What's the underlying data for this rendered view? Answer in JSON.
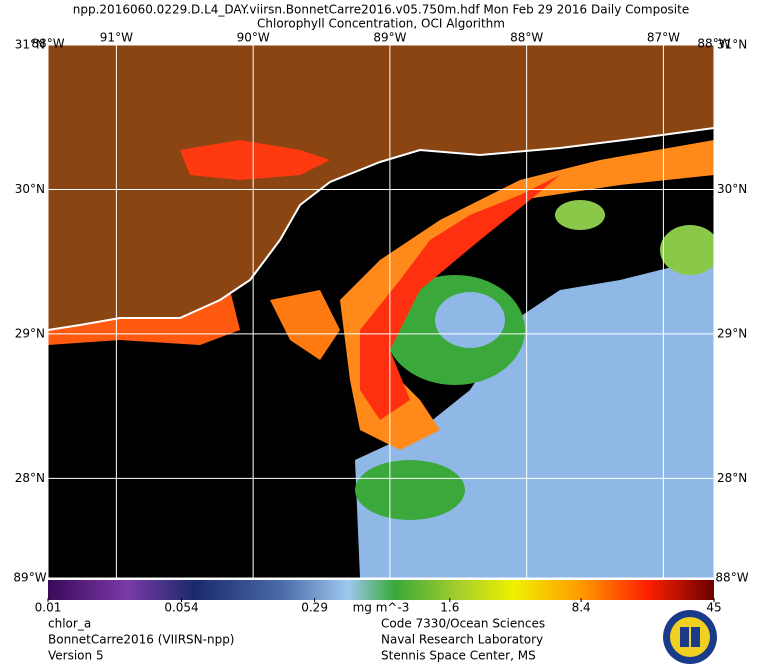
{
  "header": {
    "title": "npp.2016060.0229.D.L4_DAY.viirsn.BonnetCarre2016.v05.750m.hdf    Mon Feb 29 2016 Daily Composite",
    "subtitle": "Chlorophyll Concentration, OCI Algorithm"
  },
  "map": {
    "latlim": [
      27.31,
      31
    ],
    "lonlim": [
      -91.5,
      -86.63
    ],
    "latticks": [
      {
        "value": 31,
        "label": "31°N"
      },
      {
        "value": 30,
        "label": "30°N"
      },
      {
        "value": 29,
        "label": "29°N"
      },
      {
        "value": 28,
        "label": "28°N"
      }
    ],
    "lonticks": [
      {
        "value": -91,
        "label": "91°W"
      },
      {
        "value": -90,
        "label": "90°W"
      },
      {
        "value": -89,
        "label": "89°W"
      },
      {
        "value": -88,
        "label": "88°W"
      },
      {
        "value": -87,
        "label": "87°W"
      }
    ],
    "corner_labels": [
      "88°W",
      "88°W",
      "89°W",
      "88°W"
    ]
  },
  "colorbar": {
    "range": [
      0.01,
      45
    ],
    "log": true,
    "ticks": [
      0.01,
      0.054,
      0.29,
      1.6,
      8.4,
      45
    ],
    "unit": "mg m^-3"
  },
  "footer": {
    "left": [
      "chlor_a",
      "BonnetCarre2016 (VIIRSN-npp)",
      "Version 5"
    ],
    "right": [
      "Code 7330/Ocean Sciences",
      "Naval Research Laboratory",
      "Stennis Space Center, MS"
    ]
  }
}
